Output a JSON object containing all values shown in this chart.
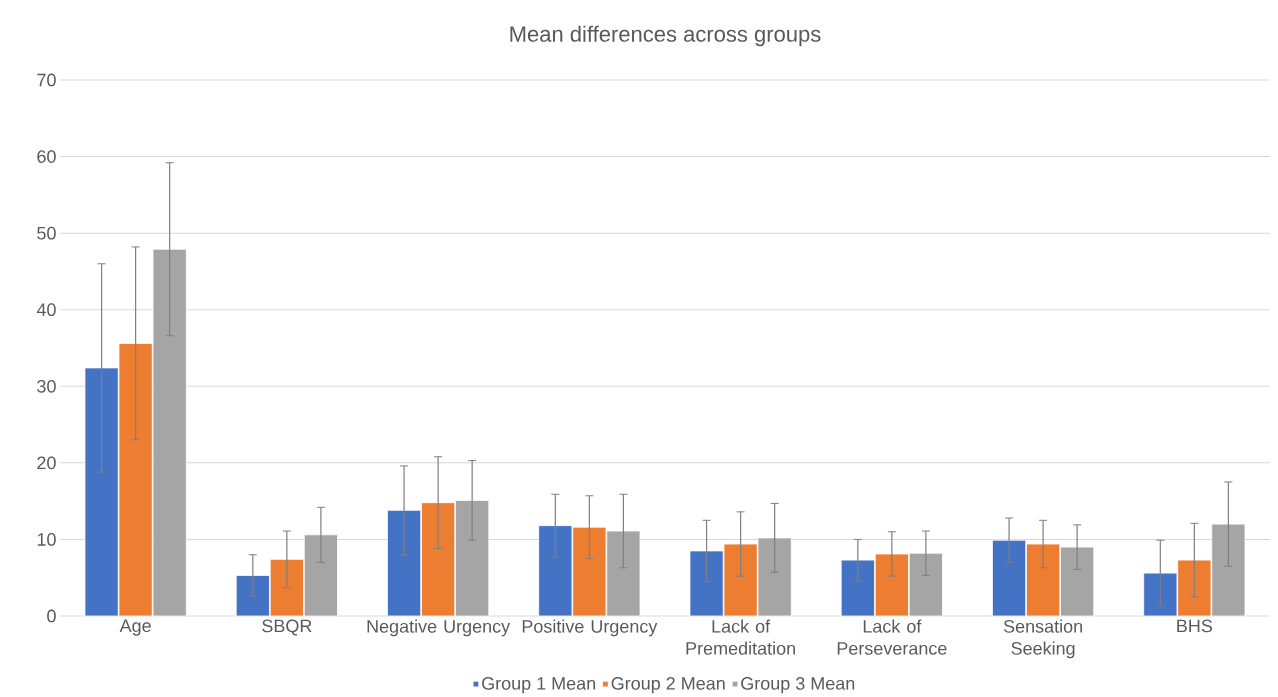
{
  "chart_data": {
    "type": "bar",
    "title": "Mean differences across groups",
    "categories": [
      "Age",
      "SBQR",
      "Negative Urgency",
      "Positive Urgency",
      "Lack of Premeditation",
      "Lack of Perseverance",
      "Sensation Seeking",
      "BHS"
    ],
    "series": [
      {
        "name": "Group 1 Mean",
        "color": "#4472c4",
        "values": [
          32.4,
          5.3,
          13.8,
          11.8,
          8.5,
          7.3,
          9.9,
          5.6
        ],
        "errors": [
          13.6,
          2.7,
          5.8,
          4.1,
          4.0,
          2.7,
          2.9,
          4.3
        ]
      },
      {
        "name": "Group 2 Mean",
        "color": "#ed7d31",
        "values": [
          35.6,
          7.4,
          14.8,
          11.6,
          9.4,
          8.1,
          9.4,
          7.3
        ],
        "errors": [
          12.6,
          3.7,
          6.0,
          4.1,
          4.2,
          2.9,
          3.1,
          4.8
        ]
      },
      {
        "name": "Group 3 Mean",
        "color": "#a5a5a5",
        "values": [
          47.9,
          10.6,
          15.1,
          11.1,
          10.2,
          8.2,
          9.0,
          12.0
        ],
        "errors": [
          11.3,
          3.6,
          5.2,
          4.8,
          4.5,
          2.9,
          2.9,
          5.5
        ]
      }
    ],
    "ylim": [
      0,
      70
    ],
    "yticks": [
      0,
      10,
      20,
      30,
      40,
      50,
      60,
      70
    ],
    "grid": "y",
    "legend": "bottom"
  }
}
